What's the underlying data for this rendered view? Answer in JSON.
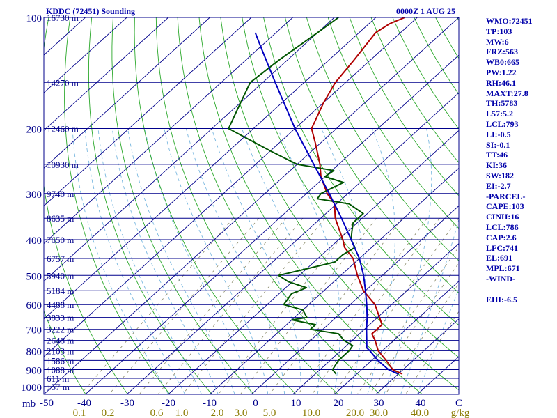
{
  "header": {
    "station": "KDDC (72451) Sounding",
    "time": "0000Z  1 AUG 25"
  },
  "stats": [
    "WMO:72451",
    "TP:103",
    "MW:6",
    "FRZ:563",
    "WB0:665",
    "PW:1.22",
    "RH:46.1",
    "MAXT:27.8",
    "TH:5783",
    "L57:5.2",
    "LCL:793",
    "LI:-0.5",
    "SI:-0.1",
    "TT:46",
    "KI:36",
    "SW:182",
    "EI:-2.7",
    "-PARCEL-",
    "CAPE:103",
    "CINH:16",
    "LCL:786",
    "CAP:2.6",
    "LFC:741",
    "EL:691",
    "MPL:671",
    "-WIND-",
    "",
    "EHI:-6.5"
  ],
  "colors": {
    "isobar": "#00008b",
    "isotherm": "#00008b",
    "dry_adiabat": "#2aa82a",
    "moist_adiabat": "#7ab8e0",
    "mixing_ratio": "#8a8a6a",
    "temperature": "#b00000",
    "dewpoint": "#005500",
    "parcel": "#0000c0",
    "text": "#0000aa",
    "mixing_label": "#8a7a00"
  },
  "chart_data": {
    "type": "skew-t",
    "pressure_unit": "mb",
    "pressure_ticks": [
      100,
      200,
      300,
      400,
      500,
      600,
      700,
      800,
      900,
      1000
    ],
    "pressure_range": [
      100,
      1050
    ],
    "temperature_ticks": [
      "-50",
      "-40",
      "-30",
      "-20",
      "-10",
      "0",
      "10",
      "20",
      "30",
      "40",
      "C"
    ],
    "temperature_range_at_bottom": [
      -50,
      50
    ],
    "height_levels": [
      {
        "p": 100,
        "label": "16730 m"
      },
      {
        "p": 150,
        "label": "14270 m"
      },
      {
        "p": 200,
        "label": "12460 m"
      },
      {
        "p": 250,
        "label": "10930 m"
      },
      {
        "p": 300,
        "label": "9740 m"
      },
      {
        "p": 350,
        "label": "8635 m"
      },
      {
        "p": 400,
        "label": "7650 m"
      },
      {
        "p": 450,
        "label": "6757 m"
      },
      {
        "p": 500,
        "label": "5940 m"
      },
      {
        "p": 550,
        "label": "5184 m"
      },
      {
        "p": 600,
        "label": "4488 m"
      },
      {
        "p": 650,
        "label": "3833 m"
      },
      {
        "p": 700,
        "label": "3222 m"
      },
      {
        "p": 750,
        "label": "2648 m"
      },
      {
        "p": 800,
        "label": "2103 m"
      },
      {
        "p": 850,
        "label": "1586 m"
      },
      {
        "p": 900,
        "label": "1088 m"
      },
      {
        "p": 950,
        "label": "611 m"
      },
      {
        "p": 1000,
        "label": "157 m"
      }
    ],
    "mixing_ratio_labels": [
      "0.1",
      "0.2",
      "0.6",
      "1.0",
      "2.0",
      "3.0",
      "5.0",
      "10.0",
      "20.0",
      "30.0",
      "40.0",
      "g/kg"
    ],
    "series": [
      {
        "role": "temperature",
        "points": [
          {
            "p": 925,
            "t": 31.0
          },
          {
            "p": 900,
            "t": 27.5
          },
          {
            "p": 850,
            "t": 23.5
          },
          {
            "p": 800,
            "t": 19.0
          },
          {
            "p": 750,
            "t": 15.5
          },
          {
            "p": 720,
            "t": 13.0
          },
          {
            "p": 700,
            "t": 13.0
          },
          {
            "p": 680,
            "t": 13.0
          },
          {
            "p": 650,
            "t": 10.5
          },
          {
            "p": 600,
            "t": 6.0
          },
          {
            "p": 550,
            "t": -0.5
          },
          {
            "p": 500,
            "t": -6.0
          },
          {
            "p": 450,
            "t": -11.5
          },
          {
            "p": 420,
            "t": -16.5
          },
          {
            "p": 400,
            "t": -19.0
          },
          {
            "p": 350,
            "t": -26.5
          },
          {
            "p": 320,
            "t": -30.5
          },
          {
            "p": 300,
            "t": -35.0
          },
          {
            "p": 270,
            "t": -41.0
          },
          {
            "p": 250,
            "t": -44.5
          },
          {
            "p": 220,
            "t": -51.0
          },
          {
            "p": 200,
            "t": -56.0
          },
          {
            "p": 170,
            "t": -60.0
          },
          {
            "p": 150,
            "t": -62.5
          },
          {
            "p": 130,
            "t": -64.0
          },
          {
            "p": 110,
            "t": -66.0
          },
          {
            "p": 104,
            "t": -65.0
          },
          {
            "p": 100,
            "t": -63.0
          }
        ]
      },
      {
        "role": "dewpoint",
        "points": [
          {
            "p": 925,
            "t": 15.0
          },
          {
            "p": 900,
            "t": 13.0
          },
          {
            "p": 850,
            "t": 12.0
          },
          {
            "p": 800,
            "t": 12.0
          },
          {
            "p": 775,
            "t": 11.5
          },
          {
            "p": 750,
            "t": 8.0
          },
          {
            "p": 720,
            "t": 5.0
          },
          {
            "p": 700,
            "t": -3.0
          },
          {
            "p": 680,
            "t": -3.0
          },
          {
            "p": 660,
            "t": -10.0
          },
          {
            "p": 650,
            "t": -7.0
          },
          {
            "p": 620,
            "t": -10.0
          },
          {
            "p": 600,
            "t": -16.0
          },
          {
            "p": 560,
            "t": -17.0
          },
          {
            "p": 540,
            "t": -15.0
          },
          {
            "p": 520,
            "t": -21.0
          },
          {
            "p": 500,
            "t": -25.0
          },
          {
            "p": 480,
            "t": -20.0
          },
          {
            "p": 460,
            "t": -15.0
          },
          {
            "p": 440,
            "t": -15.0
          },
          {
            "p": 420,
            "t": -14.0
          },
          {
            "p": 400,
            "t": -17.0
          },
          {
            "p": 380,
            "t": -19.0
          },
          {
            "p": 360,
            "t": -21.0
          },
          {
            "p": 340,
            "t": -21.0
          },
          {
            "p": 320,
            "t": -27.0
          },
          {
            "p": 310,
            "t": -36.0
          },
          {
            "p": 300,
            "t": -36.5
          },
          {
            "p": 280,
            "t": -34.0
          },
          {
            "p": 270,
            "t": -40.0
          },
          {
            "p": 260,
            "t": -39.5
          },
          {
            "p": 250,
            "t": -50.0
          },
          {
            "p": 230,
            "t": -60.0
          },
          {
            "p": 200,
            "t": -76.0
          },
          {
            "p": 170,
            "t": -80.0
          },
          {
            "p": 150,
            "t": -83.0
          },
          {
            "p": 130,
            "t": -82.0
          },
          {
            "p": 110,
            "t": -80.0
          },
          {
            "p": 100,
            "t": -79.0
          }
        ]
      },
      {
        "role": "parcel",
        "points": [
          {
            "p": 925,
            "t": 30.0
          },
          {
            "p": 900,
            "t": 26.5
          },
          {
            "p": 850,
            "t": 21.5
          },
          {
            "p": 800,
            "t": 17.0
          },
          {
            "p": 786,
            "t": 15.5
          },
          {
            "p": 750,
            "t": 13.5
          },
          {
            "p": 700,
            "t": 10.5
          },
          {
            "p": 650,
            "t": 7.5
          },
          {
            "p": 600,
            "t": 4.0
          },
          {
            "p": 550,
            "t": 0.0
          },
          {
            "p": 500,
            "t": -4.5
          },
          {
            "p": 450,
            "t": -10.0
          },
          {
            "p": 400,
            "t": -17.0
          },
          {
            "p": 350,
            "t": -25.0
          },
          {
            "p": 300,
            "t": -34.5
          },
          {
            "p": 250,
            "t": -46.0
          },
          {
            "p": 200,
            "t": -60.0
          },
          {
            "p": 150,
            "t": -77.0
          },
          {
            "p": 120,
            "t": -90.0
          },
          {
            "p": 110,
            "t": -95.0
          }
        ]
      }
    ]
  }
}
